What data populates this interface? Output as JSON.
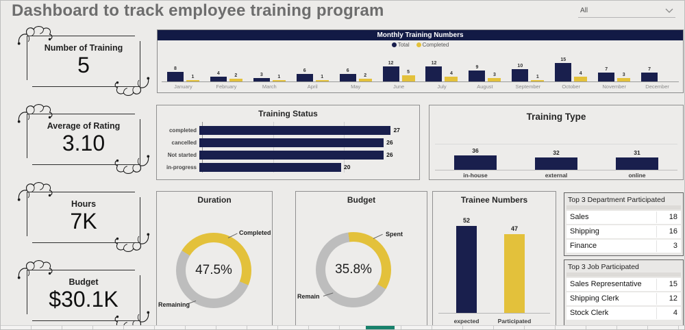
{
  "header": {
    "title": "Dashboard to track employee training program",
    "filter_value": "All"
  },
  "colors": {
    "navy": "#191F4D",
    "yellow": "#E3C13B",
    "gray": "#BDBDBD",
    "teal": "#17816B",
    "header_navy": "#121A45"
  },
  "kpis": [
    {
      "label": "Number of Training",
      "value": "5"
    },
    {
      "label": "Average of Rating",
      "value": "3.10"
    },
    {
      "label": "Hours",
      "value": "7K"
    },
    {
      "label": "Budget",
      "value": "$30.1K"
    }
  ],
  "chart_data": [
    {
      "type": "bar",
      "title": "Monthly Training Numbers",
      "legend_position": "top",
      "data_labels": true,
      "categories": [
        "January",
        "February",
        "March",
        "April",
        "May",
        "June",
        "July",
        "August",
        "September",
        "October",
        "November",
        "December"
      ],
      "series": [
        {
          "name": "Total",
          "color": "#191F4D",
          "values": [
            8,
            4,
            3,
            6,
            6,
            12,
            12,
            9,
            10,
            15,
            7,
            7
          ]
        },
        {
          "name": "Completed",
          "color": "#E3C13B",
          "values": [
            1,
            2,
            1,
            1,
            2,
            5,
            4,
            3,
            1,
            4,
            3,
            0
          ]
        }
      ]
    },
    {
      "type": "bar",
      "orientation": "horizontal",
      "title": "Training Status",
      "categories": [
        "completed",
        "cancelled",
        "Not started",
        "in-progress"
      ],
      "values": [
        27,
        26,
        26,
        20
      ],
      "xlim": [
        0,
        30
      ],
      "gridlines": [
        0,
        10,
        20
      ]
    },
    {
      "type": "bar",
      "title": "Training Type",
      "categories": [
        "in-house",
        "external",
        "online"
      ],
      "values": [
        36,
        32,
        31
      ]
    },
    {
      "type": "pie",
      "title": "Duration",
      "center_label": "47.5%",
      "slices": [
        {
          "label": "Completed",
          "value": 47.5
        },
        {
          "label": "Remaining",
          "value": 52.5
        }
      ]
    },
    {
      "type": "pie",
      "title": "Budget",
      "center_label": "35.8%",
      "slices": [
        {
          "label": "Spent",
          "value": 35.8
        },
        {
          "label": "Remain",
          "value": 64.2
        }
      ]
    },
    {
      "type": "bar",
      "title": "Trainee Numbers",
      "categories": [
        "expected",
        "Participated"
      ],
      "values": [
        52,
        47
      ],
      "bar_colors": [
        "#191F4D",
        "#E3C13B"
      ]
    }
  ],
  "tables": [
    {
      "title": "Top 3 Department Participated",
      "rows": [
        {
          "name": "Sales",
          "value": "18"
        },
        {
          "name": "Shipping",
          "value": "16"
        },
        {
          "name": "Finance",
          "value": "3"
        }
      ]
    },
    {
      "title": "Top 3 Job Participated",
      "rows": [
        {
          "name": "Sales Representative",
          "value": "15"
        },
        {
          "name": "Shipping Clerk",
          "value": "12"
        },
        {
          "name": "Stock Clerk",
          "value": "4"
        }
      ]
    }
  ]
}
